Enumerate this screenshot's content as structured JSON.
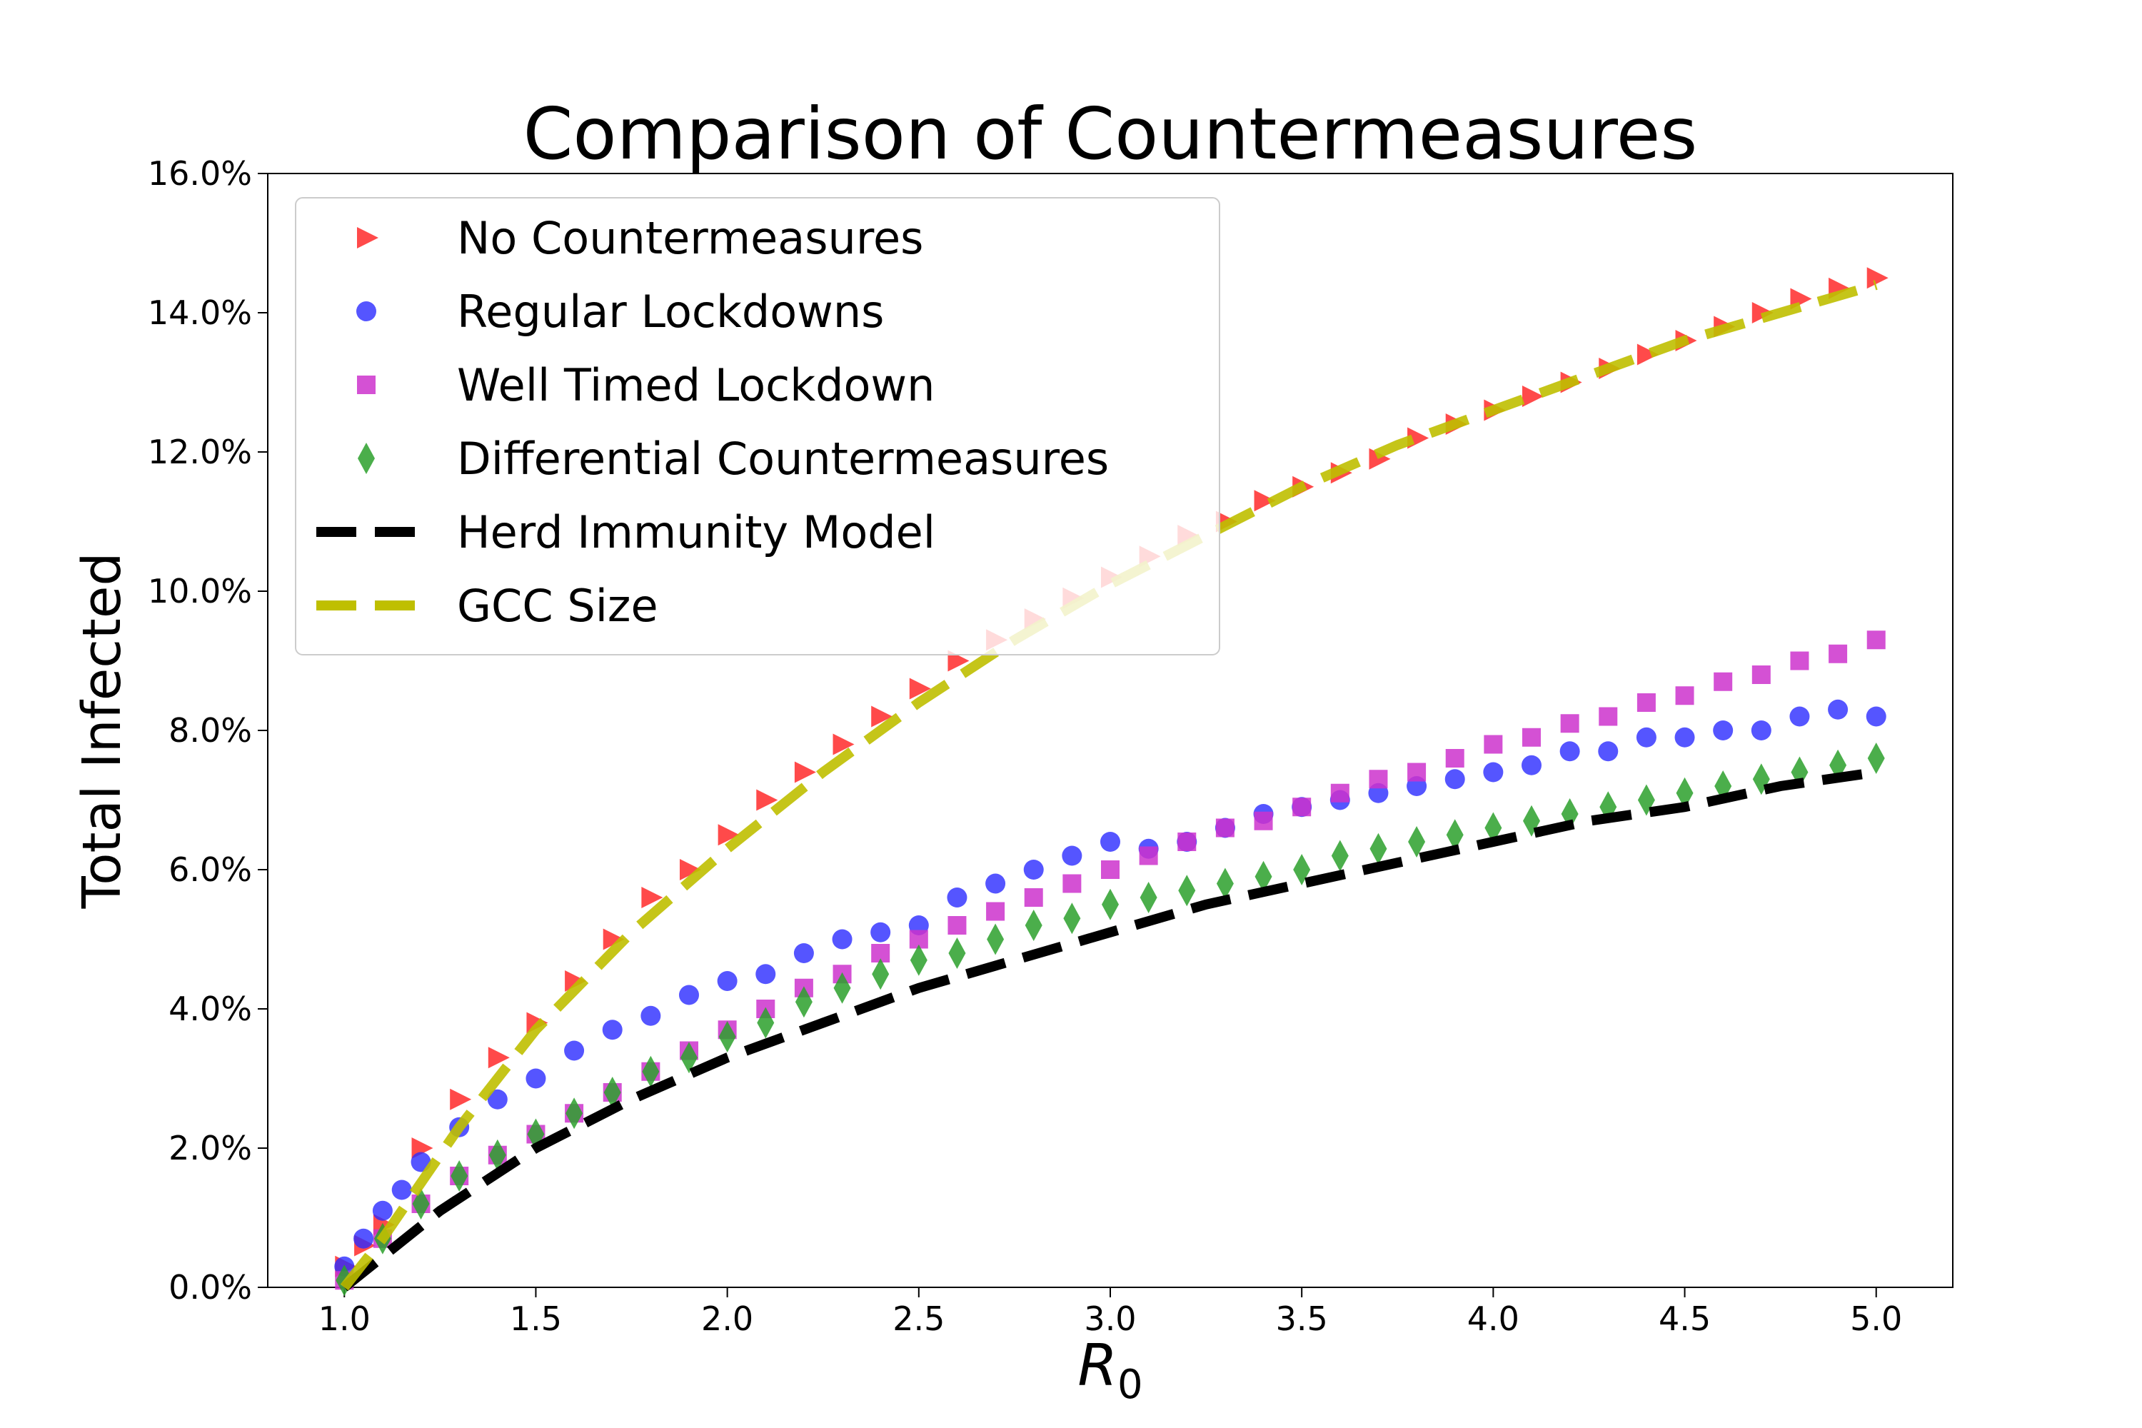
{
  "chart_data": {
    "type": "scatter",
    "title": "Comparison of Countermeasures",
    "xlabel_main": "R",
    "xlabel_sub": "0",
    "ylabel": "Total Infected",
    "xlim": [
      0.8,
      5.2
    ],
    "ylim": [
      0,
      16
    ],
    "xticks": [
      1.0,
      1.5,
      2.0,
      2.5,
      3.0,
      3.5,
      4.0,
      4.5,
      5.0
    ],
    "xtick_labels": [
      "1.0",
      "1.5",
      "2.0",
      "2.5",
      "3.0",
      "3.5",
      "4.0",
      "4.5",
      "5.0"
    ],
    "yticks": [
      0,
      2,
      4,
      6,
      8,
      10,
      12,
      14,
      16
    ],
    "ytick_labels": [
      "0.0%",
      "2.0%",
      "4.0%",
      "6.0%",
      "8.0%",
      "10.0%",
      "12.0%",
      "14.0%",
      "16.0%"
    ],
    "grid": false,
    "legend_position": "top-left",
    "series": [
      {
        "name": "No Countermeasures",
        "marker": "triangle-right",
        "color": "#ff2a2a",
        "x": [
          1.0,
          1.05,
          1.1,
          1.2,
          1.3,
          1.4,
          1.5,
          1.6,
          1.7,
          1.8,
          1.9,
          2.0,
          2.1,
          2.2,
          2.3,
          2.4,
          2.5,
          2.6,
          2.7,
          2.8,
          2.9,
          3.0,
          3.1,
          3.2,
          3.3,
          3.4,
          3.5,
          3.6,
          3.7,
          3.8,
          3.9,
          4.0,
          4.1,
          4.2,
          4.3,
          4.4,
          4.5,
          4.6,
          4.7,
          4.8,
          4.9,
          5.0
        ],
        "y": [
          0.3,
          0.6,
          0.9,
          2.0,
          2.7,
          3.3,
          3.8,
          4.4,
          5.0,
          5.6,
          6.0,
          6.5,
          7.0,
          7.4,
          7.8,
          8.2,
          8.6,
          9.0,
          9.3,
          9.6,
          9.9,
          10.2,
          10.5,
          10.8,
          11.0,
          11.3,
          11.5,
          11.7,
          11.9,
          12.2,
          12.4,
          12.6,
          12.8,
          13.0,
          13.2,
          13.4,
          13.6,
          13.8,
          14.0,
          14.2,
          14.35,
          14.5
        ]
      },
      {
        "name": "Regular Lockdowns",
        "marker": "circle",
        "color": "#2a2aff",
        "x": [
          1.0,
          1.05,
          1.1,
          1.15,
          1.2,
          1.3,
          1.4,
          1.5,
          1.6,
          1.7,
          1.8,
          1.9,
          2.0,
          2.1,
          2.2,
          2.3,
          2.4,
          2.5,
          2.6,
          2.7,
          2.8,
          2.9,
          3.0,
          3.1,
          3.2,
          3.3,
          3.4,
          3.5,
          3.6,
          3.7,
          3.8,
          3.9,
          4.0,
          4.1,
          4.2,
          4.3,
          4.4,
          4.5,
          4.6,
          4.7,
          4.8,
          4.9,
          5.0
        ],
        "y": [
          0.3,
          0.7,
          1.1,
          1.4,
          1.8,
          2.3,
          2.7,
          3.0,
          3.4,
          3.7,
          3.9,
          4.2,
          4.4,
          4.5,
          4.8,
          5.0,
          5.1,
          5.2,
          5.6,
          5.8,
          6.0,
          6.2,
          6.4,
          6.3,
          6.4,
          6.6,
          6.8,
          6.9,
          7.0,
          7.1,
          7.2,
          7.3,
          7.4,
          7.5,
          7.7,
          7.7,
          7.9,
          7.9,
          8.0,
          8.0,
          8.2,
          8.3,
          8.2
        ]
      },
      {
        "name": "Well Timed Lockdown",
        "marker": "square",
        "color": "#cc33cc",
        "x": [
          1.0,
          1.1,
          1.2,
          1.3,
          1.4,
          1.5,
          1.6,
          1.7,
          1.8,
          1.9,
          2.0,
          2.1,
          2.2,
          2.3,
          2.4,
          2.5,
          2.6,
          2.7,
          2.8,
          2.9,
          3.0,
          3.1,
          3.2,
          3.3,
          3.4,
          3.5,
          3.6,
          3.7,
          3.8,
          3.9,
          4.0,
          4.1,
          4.2,
          4.3,
          4.4,
          4.5,
          4.6,
          4.7,
          4.8,
          4.9,
          5.0
        ],
        "y": [
          0.1,
          0.7,
          1.2,
          1.6,
          1.9,
          2.2,
          2.5,
          2.8,
          3.1,
          3.4,
          3.7,
          4.0,
          4.3,
          4.5,
          4.8,
          5.0,
          5.2,
          5.4,
          5.6,
          5.8,
          6.0,
          6.2,
          6.4,
          6.6,
          6.7,
          6.9,
          7.1,
          7.3,
          7.4,
          7.6,
          7.8,
          7.9,
          8.1,
          8.2,
          8.4,
          8.5,
          8.7,
          8.8,
          9.0,
          9.1,
          9.3
        ]
      },
      {
        "name": "Differential Countermeasures",
        "marker": "diamond",
        "color": "#2ca02c",
        "x": [
          1.0,
          1.1,
          1.2,
          1.3,
          1.4,
          1.5,
          1.6,
          1.7,
          1.8,
          1.9,
          2.0,
          2.1,
          2.2,
          2.3,
          2.4,
          2.5,
          2.6,
          2.7,
          2.8,
          2.9,
          3.0,
          3.1,
          3.2,
          3.3,
          3.4,
          3.5,
          3.6,
          3.7,
          3.8,
          3.9,
          4.0,
          4.1,
          4.2,
          4.3,
          4.4,
          4.5,
          4.6,
          4.7,
          4.8,
          4.9,
          5.0
        ],
        "y": [
          0.1,
          0.7,
          1.2,
          1.6,
          1.9,
          2.2,
          2.5,
          2.8,
          3.1,
          3.3,
          3.6,
          3.8,
          4.1,
          4.3,
          4.5,
          4.7,
          4.8,
          5.0,
          5.2,
          5.3,
          5.5,
          5.6,
          5.7,
          5.8,
          5.9,
          6.0,
          6.2,
          6.3,
          6.4,
          6.5,
          6.6,
          6.7,
          6.8,
          6.9,
          7.0,
          7.1,
          7.2,
          7.3,
          7.4,
          7.5,
          7.6
        ]
      },
      {
        "name": "Herd Immunity Model",
        "marker": "dashed-line",
        "color": "#000000",
        "x": [
          1.0,
          1.25,
          1.5,
          1.75,
          2.0,
          2.25,
          2.5,
          2.75,
          3.0,
          3.25,
          3.5,
          3.75,
          4.0,
          4.25,
          4.5,
          4.75,
          5.0
        ],
        "y": [
          0.0,
          1.1,
          2.0,
          2.7,
          3.3,
          3.8,
          4.3,
          4.7,
          5.1,
          5.5,
          5.8,
          6.1,
          6.4,
          6.7,
          6.9,
          7.2,
          7.4
        ]
      },
      {
        "name": "GCC Size",
        "marker": "dashed-line",
        "color": "#bfbf00",
        "x": [
          1.0,
          1.1,
          1.2,
          1.3,
          1.4,
          1.5,
          1.75,
          2.0,
          2.25,
          2.5,
          2.75,
          3.0,
          3.25,
          3.5,
          3.75,
          4.0,
          4.25,
          4.5,
          4.75,
          5.0
        ],
        "y": [
          0.0,
          0.7,
          1.5,
          2.3,
          3.0,
          3.7,
          5.1,
          6.3,
          7.4,
          8.4,
          9.3,
          10.1,
          10.8,
          11.5,
          12.1,
          12.6,
          13.1,
          13.6,
          14.0,
          14.4
        ]
      }
    ]
  }
}
